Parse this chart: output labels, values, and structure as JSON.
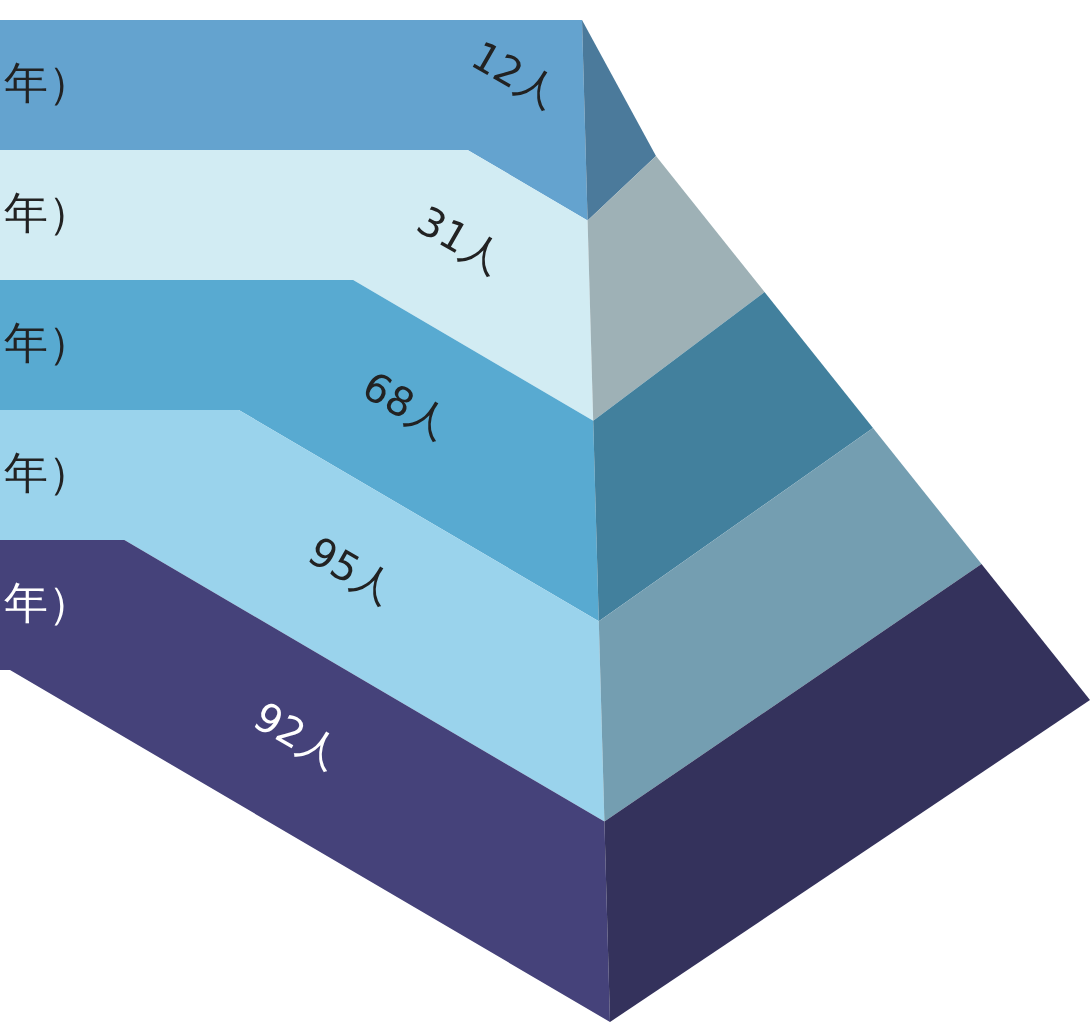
{
  "chart_data": {
    "type": "other",
    "categories": [
      "年）",
      "年）",
      "年）",
      "年）",
      "年）"
    ],
    "values": [
      12,
      31,
      68,
      95,
      92
    ],
    "value_labels": [
      "12人",
      "31人",
      "68人",
      "95人",
      "92人"
    ],
    "colors": [
      "#64a3cf",
      "#d2ecf3",
      "#58aad1",
      "#9ad3ec",
      "#45427a"
    ]
  }
}
